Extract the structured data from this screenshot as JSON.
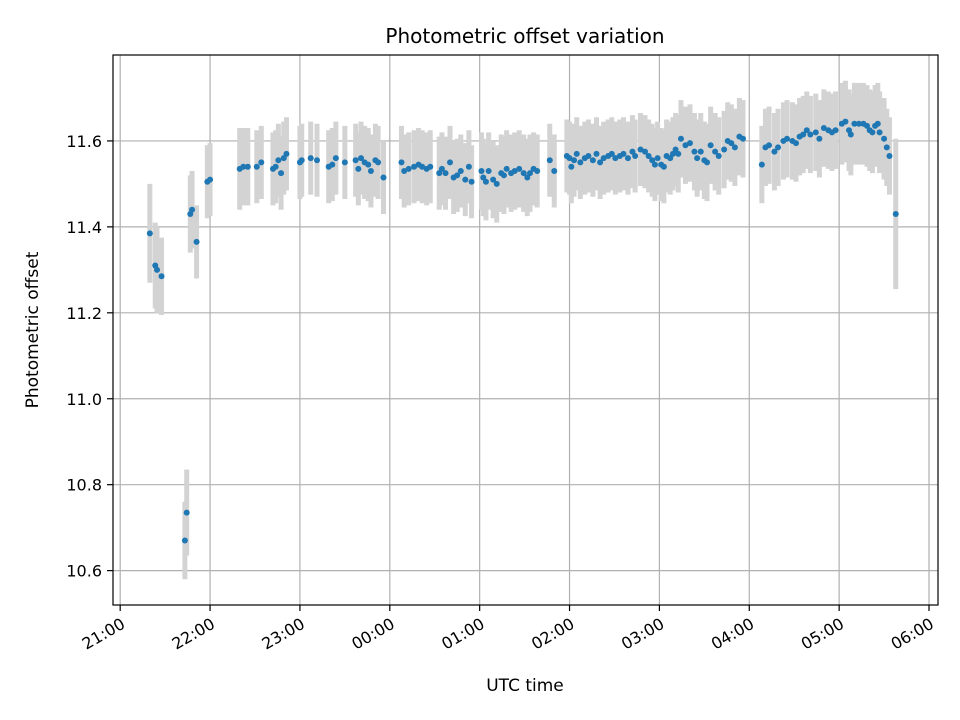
{
  "chart_data": {
    "type": "scatter",
    "title": "Photometric offset variation",
    "xlabel": "UTC time",
    "ylabel": "Photometric offset",
    "grid": true,
    "xlim": [
      -0.08,
      9.1
    ],
    "ylim": [
      10.52,
      11.8
    ],
    "x_ticks": [
      {
        "value": 0,
        "label": "21:00"
      },
      {
        "value": 1,
        "label": "22:00"
      },
      {
        "value": 2,
        "label": "23:00"
      },
      {
        "value": 3,
        "label": "00:00"
      },
      {
        "value": 4,
        "label": "01:00"
      },
      {
        "value": 5,
        "label": "02:00"
      },
      {
        "value": 6,
        "label": "03:00"
      },
      {
        "value": 7,
        "label": "04:00"
      },
      {
        "value": 8,
        "label": "05:00"
      },
      {
        "value": 9,
        "label": "06:00"
      }
    ],
    "y_ticks": [
      {
        "value": 10.6,
        "label": "10.6"
      },
      {
        "value": 10.8,
        "label": "10.8"
      },
      {
        "value": 11.0,
        "label": "11.0"
      },
      {
        "value": 11.2,
        "label": "11.2"
      },
      {
        "value": 11.4,
        "label": "11.4"
      },
      {
        "value": 11.6,
        "label": "11.6"
      }
    ],
    "colors": {
      "marker": "#1f77b4",
      "errorbar": "#d3d3d3",
      "grid": "#b0b0b0"
    },
    "x_unit": "hours since 21:00 UTC",
    "series": [
      {
        "name": "Photometric offset",
        "points": [
          [
            0.33,
            11.385,
            0.115
          ],
          [
            0.39,
            11.31,
            0.1
          ],
          [
            0.41,
            11.3,
            0.1
          ],
          [
            0.46,
            11.285,
            0.09
          ],
          [
            0.72,
            10.67,
            0.09
          ],
          [
            0.74,
            10.735,
            0.1
          ],
          [
            0.78,
            11.43,
            0.09
          ],
          [
            0.8,
            11.44,
            0.09
          ],
          [
            0.85,
            11.365,
            0.085
          ],
          [
            0.97,
            11.505,
            0.085
          ],
          [
            1.0,
            11.51,
            0.085
          ],
          [
            1.33,
            11.535,
            0.095
          ],
          [
            1.37,
            11.54,
            0.09
          ],
          [
            1.42,
            11.54,
            0.09
          ],
          [
            1.52,
            11.54,
            0.085
          ],
          [
            1.57,
            11.55,
            0.085
          ],
          [
            1.7,
            11.535,
            0.085
          ],
          [
            1.73,
            11.54,
            0.085
          ],
          [
            1.76,
            11.555,
            0.085
          ],
          [
            1.79,
            11.525,
            0.085
          ],
          [
            1.82,
            11.56,
            0.085
          ],
          [
            1.85,
            11.57,
            0.085
          ],
          [
            2.0,
            11.55,
            0.085
          ],
          [
            2.02,
            11.555,
            0.085
          ],
          [
            2.12,
            11.56,
            0.085
          ],
          [
            2.19,
            11.555,
            0.085
          ],
          [
            2.32,
            11.54,
            0.085
          ],
          [
            2.36,
            11.545,
            0.085
          ],
          [
            2.4,
            11.56,
            0.085
          ],
          [
            2.5,
            11.55,
            0.085
          ],
          [
            2.62,
            11.555,
            0.085
          ],
          [
            2.65,
            11.535,
            0.085
          ],
          [
            2.68,
            11.56,
            0.085
          ],
          [
            2.72,
            11.55,
            0.085
          ],
          [
            2.76,
            11.545,
            0.085
          ],
          [
            2.79,
            11.53,
            0.085
          ],
          [
            2.84,
            11.555,
            0.085
          ],
          [
            2.87,
            11.55,
            0.085
          ],
          [
            2.93,
            11.515,
            0.085
          ],
          [
            3.13,
            11.55,
            0.085
          ],
          [
            3.16,
            11.53,
            0.085
          ],
          [
            3.21,
            11.535,
            0.085
          ],
          [
            3.27,
            11.54,
            0.085
          ],
          [
            3.32,
            11.545,
            0.085
          ],
          [
            3.36,
            11.54,
            0.085
          ],
          [
            3.41,
            11.535,
            0.085
          ],
          [
            3.45,
            11.54,
            0.085
          ],
          [
            3.55,
            11.525,
            0.085
          ],
          [
            3.58,
            11.535,
            0.085
          ],
          [
            3.62,
            11.525,
            0.085
          ],
          [
            3.67,
            11.55,
            0.085
          ],
          [
            3.71,
            11.515,
            0.085
          ],
          [
            3.75,
            11.52,
            0.085
          ],
          [
            3.79,
            11.53,
            0.085
          ],
          [
            3.84,
            11.51,
            0.085
          ],
          [
            3.88,
            11.54,
            0.085
          ],
          [
            3.91,
            11.505,
            0.085
          ],
          [
            4.02,
            11.53,
            0.09
          ],
          [
            4.04,
            11.515,
            0.09
          ],
          [
            4.07,
            11.505,
            0.09
          ],
          [
            4.1,
            11.53,
            0.09
          ],
          [
            4.15,
            11.51,
            0.09
          ],
          [
            4.19,
            11.5,
            0.09
          ],
          [
            4.24,
            11.525,
            0.09
          ],
          [
            4.27,
            11.52,
            0.09
          ],
          [
            4.3,
            11.535,
            0.09
          ],
          [
            4.35,
            11.525,
            0.09
          ],
          [
            4.39,
            11.53,
            0.09
          ],
          [
            4.44,
            11.535,
            0.09
          ],
          [
            4.49,
            11.525,
            0.09
          ],
          [
            4.53,
            11.515,
            0.09
          ],
          [
            4.56,
            11.525,
            0.09
          ],
          [
            4.6,
            11.535,
            0.085
          ],
          [
            4.64,
            11.53,
            0.085
          ],
          [
            4.78,
            11.555,
            0.085
          ],
          [
            4.83,
            11.53,
            0.085
          ],
          [
            4.97,
            11.565,
            0.085
          ],
          [
            5.0,
            11.56,
            0.085
          ],
          [
            5.02,
            11.54,
            0.085
          ],
          [
            5.05,
            11.555,
            0.085
          ],
          [
            5.08,
            11.57,
            0.085
          ],
          [
            5.12,
            11.55,
            0.085
          ],
          [
            5.17,
            11.56,
            0.085
          ],
          [
            5.21,
            11.565,
            0.085
          ],
          [
            5.26,
            11.555,
            0.085
          ],
          [
            5.3,
            11.57,
            0.085
          ],
          [
            5.34,
            11.55,
            0.085
          ],
          [
            5.38,
            11.56,
            0.085
          ],
          [
            5.43,
            11.565,
            0.085
          ],
          [
            5.47,
            11.57,
            0.085
          ],
          [
            5.51,
            11.56,
            0.085
          ],
          [
            5.56,
            11.565,
            0.085
          ],
          [
            5.6,
            11.57,
            0.085
          ],
          [
            5.65,
            11.56,
            0.085
          ],
          [
            5.7,
            11.575,
            0.085
          ],
          [
            5.73,
            11.565,
            0.085
          ],
          [
            5.79,
            11.58,
            0.085
          ],
          [
            5.84,
            11.575,
            0.085
          ],
          [
            5.88,
            11.565,
            0.085
          ],
          [
            5.92,
            11.555,
            0.085
          ],
          [
            5.95,
            11.545,
            0.085
          ],
          [
            5.98,
            11.56,
            0.085
          ],
          [
            6.02,
            11.545,
            0.085
          ],
          [
            6.05,
            11.54,
            0.085
          ],
          [
            6.08,
            11.565,
            0.085
          ],
          [
            6.12,
            11.56,
            0.085
          ],
          [
            6.15,
            11.57,
            0.085
          ],
          [
            6.18,
            11.58,
            0.085
          ],
          [
            6.21,
            11.57,
            0.09
          ],
          [
            6.24,
            11.605,
            0.09
          ],
          [
            6.29,
            11.59,
            0.09
          ],
          [
            6.34,
            11.595,
            0.09
          ],
          [
            6.39,
            11.575,
            0.09
          ],
          [
            6.42,
            11.56,
            0.09
          ],
          [
            6.46,
            11.575,
            0.09
          ],
          [
            6.5,
            11.555,
            0.09
          ],
          [
            6.53,
            11.55,
            0.09
          ],
          [
            6.57,
            11.59,
            0.09
          ],
          [
            6.62,
            11.575,
            0.09
          ],
          [
            6.66,
            11.565,
            0.09
          ],
          [
            6.72,
            11.58,
            0.09
          ],
          [
            6.76,
            11.6,
            0.09
          ],
          [
            6.8,
            11.595,
            0.09
          ],
          [
            6.84,
            11.585,
            0.09
          ],
          [
            6.89,
            11.61,
            0.09
          ],
          [
            6.93,
            11.605,
            0.09
          ],
          [
            7.14,
            11.545,
            0.09
          ],
          [
            7.18,
            11.585,
            0.09
          ],
          [
            7.22,
            11.59,
            0.09
          ],
          [
            7.28,
            11.575,
            0.09
          ],
          [
            7.32,
            11.585,
            0.09
          ],
          [
            7.38,
            11.6,
            0.09
          ],
          [
            7.42,
            11.605,
            0.09
          ],
          [
            7.48,
            11.6,
            0.09
          ],
          [
            7.52,
            11.595,
            0.09
          ],
          [
            7.56,
            11.61,
            0.09
          ],
          [
            7.6,
            11.615,
            0.09
          ],
          [
            7.64,
            11.625,
            0.09
          ],
          [
            7.68,
            11.615,
            0.09
          ],
          [
            7.74,
            11.62,
            0.09
          ],
          [
            7.78,
            11.605,
            0.09
          ],
          [
            7.83,
            11.63,
            0.09
          ],
          [
            7.88,
            11.625,
            0.09
          ],
          [
            7.92,
            11.62,
            0.09
          ],
          [
            7.96,
            11.625,
            0.09
          ],
          [
            8.03,
            11.64,
            0.095
          ],
          [
            8.07,
            11.645,
            0.095
          ],
          [
            8.11,
            11.625,
            0.095
          ],
          [
            8.13,
            11.615,
            0.095
          ],
          [
            8.17,
            11.64,
            0.095
          ],
          [
            8.22,
            11.64,
            0.095
          ],
          [
            8.27,
            11.64,
            0.095
          ],
          [
            8.31,
            11.635,
            0.095
          ],
          [
            8.34,
            11.625,
            0.095
          ],
          [
            8.37,
            11.62,
            0.095
          ],
          [
            8.4,
            11.635,
            0.095
          ],
          [
            8.43,
            11.64,
            0.095
          ],
          [
            8.45,
            11.62,
            0.095
          ],
          [
            8.5,
            11.605,
            0.095
          ],
          [
            8.53,
            11.585,
            0.09
          ],
          [
            8.56,
            11.565,
            0.09
          ],
          [
            8.63,
            11.43,
            0.175
          ]
        ]
      }
    ]
  }
}
